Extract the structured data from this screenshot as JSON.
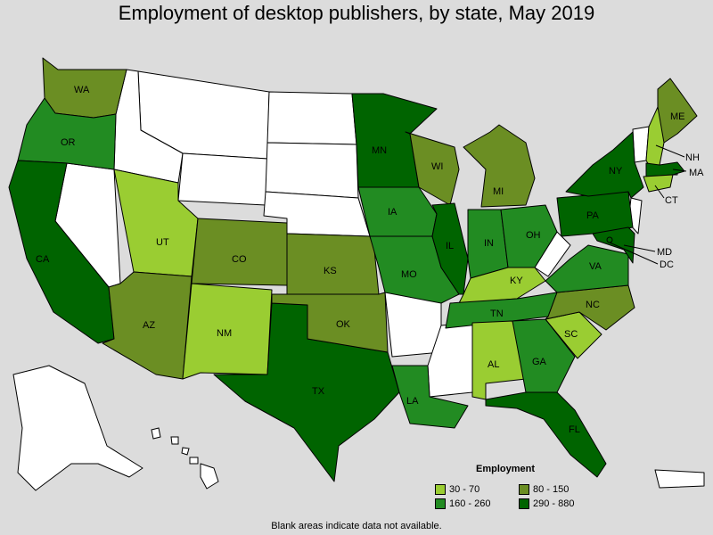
{
  "title": "Employment of desktop publishers, by state, May 2019",
  "note": "Blank areas indicate data not available.",
  "legend": {
    "title": "Employment",
    "bins": [
      {
        "label": "30 - 70",
        "color": "#9acd32"
      },
      {
        "label": "80 - 150",
        "color": "#6b8e23"
      },
      {
        "label": "160 - 260",
        "color": "#228b22"
      },
      {
        "label": "290 - 880",
        "color": "#006400"
      }
    ]
  },
  "colors": {
    "blank": "#ffffff",
    "background": "#dcdcdc"
  },
  "states": [
    {
      "abbr": "WA",
      "bin": 1
    },
    {
      "abbr": "OR",
      "bin": 2
    },
    {
      "abbr": "CA",
      "bin": 3
    },
    {
      "abbr": "UT",
      "bin": 0
    },
    {
      "abbr": "AZ",
      "bin": 1
    },
    {
      "abbr": "CO",
      "bin": 1
    },
    {
      "abbr": "NM",
      "bin": 0
    },
    {
      "abbr": "TX",
      "bin": 3
    },
    {
      "abbr": "KS",
      "bin": 1
    },
    {
      "abbr": "OK",
      "bin": 1
    },
    {
      "abbr": "MN",
      "bin": 3
    },
    {
      "abbr": "IA",
      "bin": 2
    },
    {
      "abbr": "MO",
      "bin": 2
    },
    {
      "abbr": "LA",
      "bin": 2
    },
    {
      "abbr": "WI",
      "bin": 1
    },
    {
      "abbr": "IL",
      "bin": 3
    },
    {
      "abbr": "MI",
      "bin": 1
    },
    {
      "abbr": "IN",
      "bin": 2
    },
    {
      "abbr": "OH",
      "bin": 2
    },
    {
      "abbr": "KY",
      "bin": 0
    },
    {
      "abbr": "TN",
      "bin": 2
    },
    {
      "abbr": "AL",
      "bin": 0
    },
    {
      "abbr": "GA",
      "bin": 2
    },
    {
      "abbr": "FL",
      "bin": 3
    },
    {
      "abbr": "SC",
      "bin": 0
    },
    {
      "abbr": "NC",
      "bin": 1
    },
    {
      "abbr": "VA",
      "bin": 2
    },
    {
      "abbr": "PA",
      "bin": 3
    },
    {
      "abbr": "NY",
      "bin": 3
    },
    {
      "abbr": "ME",
      "bin": 1
    },
    {
      "abbr": "NH",
      "bin": 0
    },
    {
      "abbr": "MA",
      "bin": 3
    },
    {
      "abbr": "CT",
      "bin": 0
    },
    {
      "abbr": "MD",
      "bin": 3
    },
    {
      "abbr": "DC",
      "bin": 3
    }
  ]
}
